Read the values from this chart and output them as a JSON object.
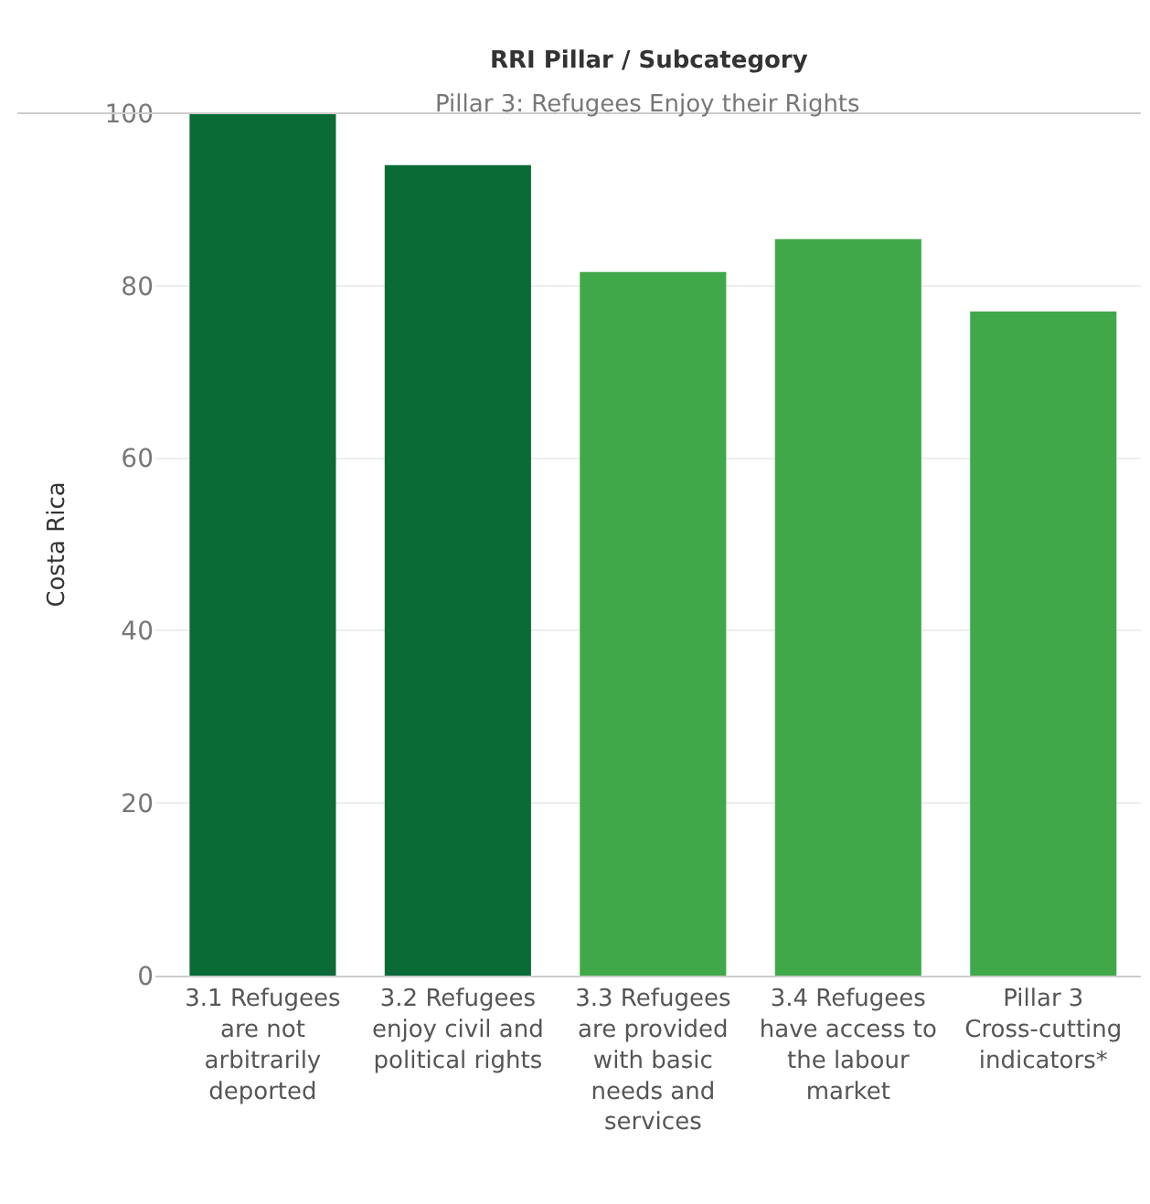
{
  "chart_data": {
    "type": "bar",
    "title": "RRI Pillar / Subcategory",
    "subtitle": "Pillar 3: Refugees Enjoy their Rights",
    "ylabel": "Costa Rica",
    "categories": [
      "3.1 Refugees\nare not\narbitrarily\ndeported",
      "3.2 Refugees\nenjoy civil and\npolitical rights",
      "3.3 Refugees\nare provided\nwith basic\nneeds and\nservices",
      "3.4 Refugees\nhave access to\nthe labour\nmarket",
      "Pillar 3\nCross-cutting\nindicators*"
    ],
    "values": [
      100,
      94,
      81.6,
      85.4,
      77
    ],
    "colors": [
      "#0b6b37",
      "#0b6b37",
      "#41a84a",
      "#41a84a",
      "#41a84a"
    ],
    "ylim": [
      0,
      100
    ],
    "yticks": [
      0,
      20,
      40,
      60,
      80,
      100
    ],
    "grid": "y",
    "legend": false
  }
}
